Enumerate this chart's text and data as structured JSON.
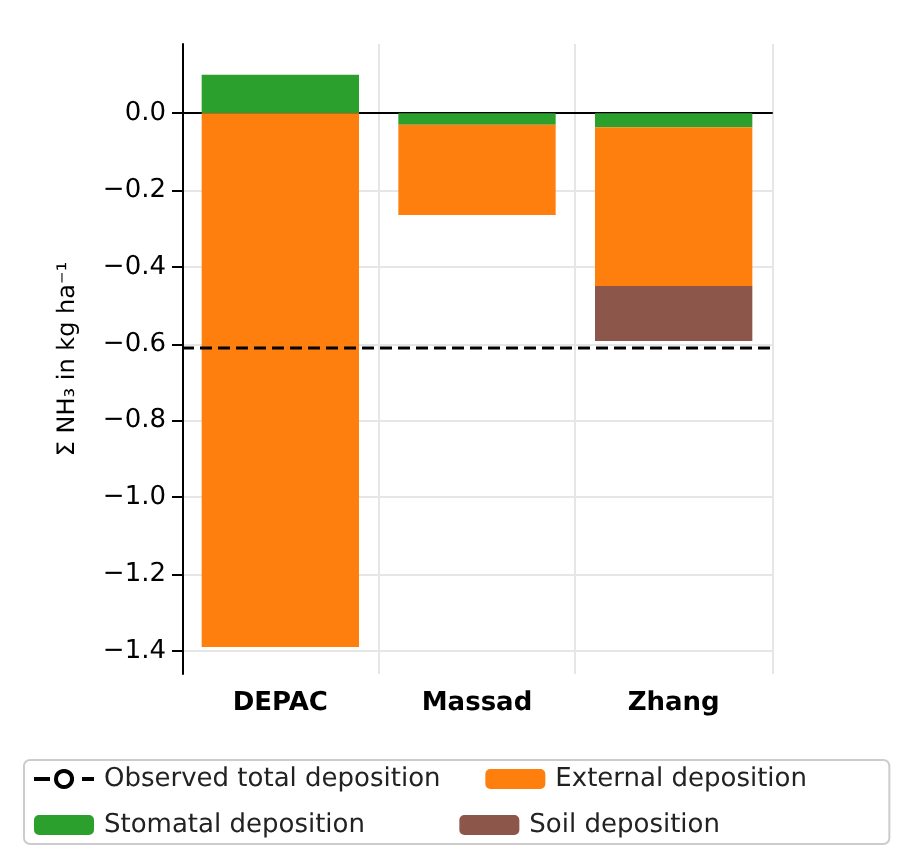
{
  "chart_data": {
    "type": "bar",
    "stacked": true,
    "ylabel": "Σ NH₃ in kg ha⁻¹",
    "categories": [
      "DEPAC",
      "Massad",
      "Zhang"
    ],
    "series": [
      {
        "name": "Stomatal deposition",
        "color": "#2ca02c",
        "values": [
          0.1,
          -0.03,
          -0.037
        ]
      },
      {
        "name": "External deposition",
        "color": "#ff7f0e",
        "values": [
          -1.39,
          -0.235,
          -0.413
        ]
      },
      {
        "name": "Soil deposition",
        "color": "#8c564b",
        "values": [
          null,
          null,
          -0.143
        ]
      }
    ],
    "ref_lines": [
      {
        "axis": "y",
        "value": -0.613,
        "label": "Observed total deposition",
        "color": "#000000",
        "line_style": "dashed"
      }
    ],
    "ylim": [
      -1.46,
      0.18
    ],
    "yticks": [
      {
        "value": -1.4,
        "label": "−1.4"
      },
      {
        "value": -1.2,
        "label": "−1.2"
      },
      {
        "value": -1.0,
        "label": "−1.0"
      },
      {
        "value": -0.8,
        "label": "−0.8"
      },
      {
        "value": -0.6,
        "label": "−0.6"
      },
      {
        "value": -0.4,
        "label": "−0.4"
      },
      {
        "value": -0.2,
        "label": "−0.2"
      },
      {
        "value": 0.0,
        "label": "0.0"
      }
    ],
    "grid": true,
    "legend": "bottom"
  }
}
